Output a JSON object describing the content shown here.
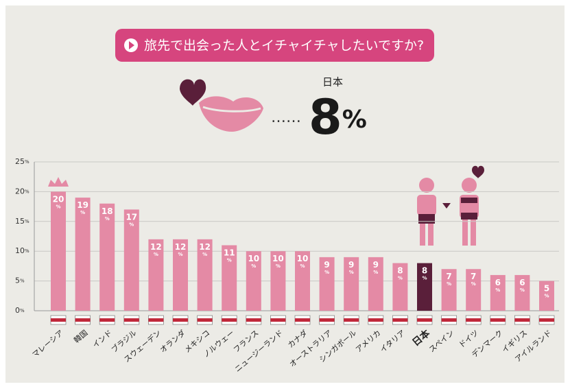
{
  "chart_data": {
    "type": "bar",
    "title": "旅先で出会った人とイチャイチャしたいですか?",
    "callout": {
      "label": "日本",
      "value_label": "8%"
    },
    "categories": [
      "マレーシア",
      "韓国",
      "インド",
      "ブラジル",
      "スウェーデン",
      "オランダ",
      "メキシコ",
      "ノルウェー",
      "フランス",
      "ニュージーランド",
      "カナダ",
      "オーストラリア",
      "シンガポール",
      "アメリカ",
      "イタリア",
      "日本",
      "スペイン",
      "ドイツ",
      "デンマーク",
      "イギリス",
      "アイルランド"
    ],
    "values": [
      20,
      19,
      18,
      17,
      12,
      12,
      12,
      11,
      10,
      10,
      10,
      9,
      9,
      9,
      8,
      8,
      7,
      7,
      6,
      6,
      5
    ],
    "value_labels": [
      "20%",
      "19%",
      "18%",
      "17%",
      "12%",
      "12%",
      "12%",
      "11%",
      "10%",
      "10%",
      "10%",
      "9%",
      "9%",
      "9%",
      "8%",
      "8%",
      "7%",
      "7%",
      "6%",
      "6%",
      "5%"
    ],
    "color": "#e48aa5",
    "colors": [
      "#e48aa5",
      "#e48aa5",
      "#e48aa5",
      "#e48aa5",
      "#e48aa5",
      "#e48aa5",
      "#e48aa5",
      "#e48aa5",
      "#e48aa5",
      "#e48aa5",
      "#e48aa5",
      "#e48aa5",
      "#e48aa5",
      "#e48aa5",
      "#e48aa5",
      "#5a1f3a",
      "#e48aa5",
      "#e48aa5",
      "#e48aa5",
      "#e48aa5",
      "#e48aa5"
    ],
    "ylim": [
      0,
      25
    ],
    "yticks": [
      {
        "value": 0,
        "label": "0%"
      },
      {
        "value": 5,
        "label": "5%"
      },
      {
        "value": 10,
        "label": "10%"
      },
      {
        "value": 15,
        "label": "15%"
      },
      {
        "value": 20,
        "label": "20%"
      },
      {
        "value": 25,
        "label": "25%"
      }
    ],
    "grid": true
  }
}
